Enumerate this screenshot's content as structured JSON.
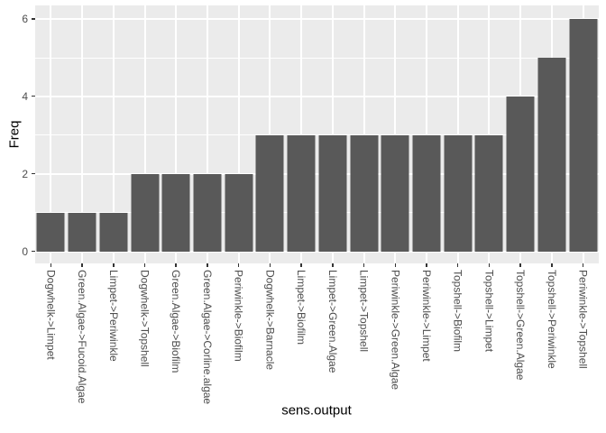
{
  "chart_data": {
    "type": "bar",
    "title": "",
    "xlabel": "sens.output",
    "ylabel": "Freq",
    "categories": [
      "Dogwhelk->Limpet",
      "Green.Algae->Fucoid.Algae",
      "Limpet->Periwinkle",
      "Dogwhelk->Topshell",
      "Green.Algae->Biofilm",
      "Green.Algae->Corline.algae",
      "Periwinkle->Biofilm",
      "Dogwhelk->Barnacle",
      "Limpet->Biofilm",
      "Limpet->Green.Algae",
      "Limpet->Topshell",
      "Periwinkle->Green.Algae",
      "Periwinkle->Limpet",
      "Topshell->Biofilm",
      "Topshell->Limpet",
      "Topshell->Green.Algae",
      "Topshell->Periwinkle",
      "Periwinkle->Topshell"
    ],
    "values": [
      1,
      1,
      1,
      2,
      2,
      2,
      2,
      3,
      3,
      3,
      3,
      3,
      3,
      3,
      3,
      4,
      5,
      6
    ],
    "ylim": [
      0,
      6
    ],
    "yticks": [
      0,
      2,
      4,
      6
    ],
    "yticks_minor": [
      1,
      3,
      5
    ],
    "grid": "on",
    "legend_position": "none",
    "colors": {
      "bar_fill": "#595959",
      "panel_bg": "#EBEBEB",
      "grid_line": "#FFFFFF",
      "tick_label": "#4D4D4D",
      "axis_title": "#000000",
      "tick_mark": "#333333",
      "figure_bg": "#FFFFFF"
    }
  }
}
